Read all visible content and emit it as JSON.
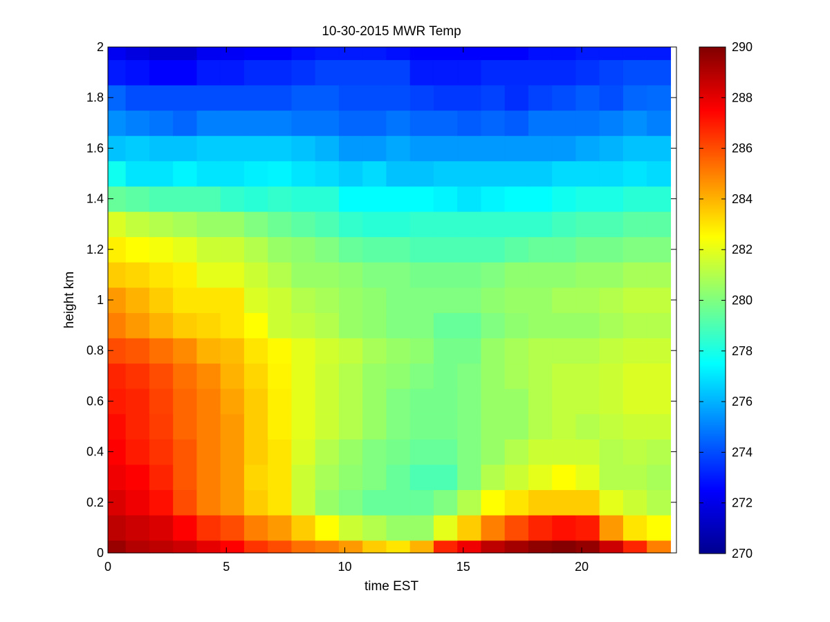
{
  "chart_data": {
    "type": "heatmap",
    "title": "10-30-2015 MWR Temp",
    "xlabel": "time EST",
    "ylabel": "height km",
    "xlim": [
      0,
      24
    ],
    "ylim": [
      0,
      2
    ],
    "x_ticks": [
      0,
      5,
      10,
      15,
      20
    ],
    "y_ticks": [
      0,
      0.2,
      0.4,
      0.6,
      0.8,
      1,
      1.2,
      1.4,
      1.6,
      1.8,
      2
    ],
    "x_tick_labels": [
      "0",
      "5",
      "10",
      "15",
      "20"
    ],
    "y_tick_labels": [
      "0",
      "0.2",
      "0.4",
      "0.6",
      "0.8",
      "1",
      "1.2",
      "1.4",
      "1.6",
      "1.8",
      "2"
    ],
    "time_centers": [
      0.25,
      1.25,
      2.25,
      3.25,
      4.25,
      5.25,
      6.25,
      7.25,
      8.25,
      9.25,
      10.25,
      11.25,
      12.25,
      13.25,
      14.25,
      15.25,
      16.25,
      17.25,
      18.25,
      19.25,
      20.25,
      21.25,
      22.25,
      23.25
    ],
    "height_edges_km": [
      0,
      0.05,
      0.15,
      0.25,
      0.35,
      0.45,
      0.55,
      0.65,
      0.75,
      0.85,
      0.95,
      1.05,
      1.15,
      1.25,
      1.35,
      1.45,
      1.55,
      1.65,
      1.75,
      1.85,
      1.95,
      2.0
    ],
    "colorbar": {
      "range": [
        270,
        290
      ],
      "ticks": [
        270,
        272,
        274,
        276,
        278,
        280,
        282,
        284,
        286,
        288,
        290
      ],
      "tick_labels": [
        "270",
        "272",
        "274",
        "276",
        "278",
        "280",
        "282",
        "284",
        "286",
        "288",
        "290"
      ],
      "colormap": "jet"
    },
    "values_K": [
      [
        289.5,
        289.0,
        288.8,
        288.5,
        288.0,
        287.5,
        286.5,
        286.0,
        285.3,
        285.0,
        284.5,
        283.5,
        283.0,
        284.0,
        286.8,
        287.8,
        288.8,
        289.3,
        289.7,
        289.9,
        289.6,
        288.5,
        286.8,
        285.0
      ],
      [
        288.8,
        288.5,
        288.2,
        287.5,
        286.5,
        286.0,
        285.0,
        284.5,
        283.5,
        282.5,
        281.5,
        281.0,
        280.5,
        280.5,
        282.0,
        283.5,
        285.0,
        286.0,
        286.8,
        287.2,
        287.0,
        284.5,
        283.0,
        282.5
      ],
      [
        288.2,
        287.8,
        287.2,
        286.0,
        285.0,
        284.5,
        283.5,
        283.0,
        281.5,
        280.5,
        280.0,
        279.5,
        279.5,
        279.5,
        280.0,
        281.0,
        282.5,
        283.0,
        283.5,
        283.5,
        283.5,
        282.0,
        281.5,
        281.0
      ],
      [
        287.8,
        287.5,
        286.8,
        285.8,
        285.0,
        284.5,
        283.3,
        283.0,
        281.5,
        280.8,
        280.3,
        280.0,
        279.5,
        279.0,
        279.0,
        280.0,
        281.0,
        281.5,
        282.0,
        282.5,
        282.0,
        281.0,
        281.0,
        280.8
      ],
      [
        287.5,
        287.0,
        286.5,
        285.8,
        285.0,
        284.5,
        283.5,
        283.0,
        281.8,
        281.0,
        280.5,
        280.0,
        279.8,
        279.5,
        279.5,
        280.0,
        280.5,
        281.0,
        281.5,
        281.5,
        281.5,
        281.0,
        281.2,
        281.0
      ],
      [
        287.3,
        286.8,
        286.3,
        285.5,
        285.0,
        284.5,
        283.5,
        282.8,
        282.0,
        281.5,
        281.0,
        280.5,
        280.0,
        279.8,
        279.8,
        280.0,
        280.5,
        280.5,
        281.0,
        281.3,
        281.0,
        281.3,
        281.5,
        281.5
      ],
      [
        287.0,
        286.8,
        286.2,
        285.5,
        285.0,
        284.3,
        283.5,
        282.8,
        282.0,
        281.5,
        281.0,
        280.5,
        280.0,
        279.8,
        279.8,
        280.0,
        280.5,
        280.5,
        281.0,
        281.3,
        281.3,
        281.5,
        281.8,
        281.8
      ],
      [
        286.8,
        286.5,
        286.0,
        285.3,
        284.8,
        284.0,
        283.3,
        282.7,
        282.0,
        281.5,
        281.0,
        280.5,
        280.3,
        280.0,
        279.8,
        280.0,
        280.5,
        280.8,
        281.0,
        281.3,
        281.3,
        281.5,
        281.8,
        281.8
      ],
      [
        286.0,
        285.8,
        285.3,
        284.8,
        284.0,
        283.8,
        283.0,
        282.6,
        282.0,
        281.6,
        281.3,
        280.8,
        280.5,
        280.3,
        279.8,
        279.8,
        280.5,
        280.8,
        281.0,
        281.0,
        281.0,
        281.3,
        281.5,
        281.5
      ],
      [
        285.0,
        284.5,
        284.0,
        283.5,
        283.3,
        283.0,
        282.5,
        281.5,
        281.3,
        281.0,
        280.5,
        280.3,
        280.0,
        280.0,
        279.5,
        279.5,
        280.0,
        280.3,
        280.5,
        280.5,
        280.5,
        280.8,
        281.0,
        281.0
      ],
      [
        284.5,
        284.0,
        283.5,
        283.0,
        283.0,
        283.0,
        281.8,
        281.5,
        281.0,
        280.8,
        280.5,
        280.3,
        280.0,
        280.0,
        280.0,
        280.0,
        280.3,
        280.5,
        280.5,
        280.8,
        280.8,
        281.0,
        281.3,
        281.3
      ],
      [
        283.5,
        283.3,
        283.0,
        282.8,
        282.0,
        282.0,
        281.5,
        281.0,
        280.5,
        280.5,
        280.3,
        280.0,
        280.0,
        279.8,
        279.8,
        279.8,
        280.0,
        280.3,
        280.3,
        280.3,
        280.5,
        280.5,
        280.8,
        280.8
      ],
      [
        282.8,
        282.5,
        282.3,
        282.0,
        281.5,
        281.5,
        281.0,
        280.5,
        280.3,
        280.0,
        279.5,
        279.3,
        279.3,
        279.0,
        279.0,
        279.0,
        279.0,
        279.3,
        279.5,
        279.5,
        279.8,
        279.8,
        280.0,
        280.0
      ],
      [
        281.8,
        281.3,
        281.0,
        280.8,
        280.5,
        280.5,
        280.0,
        279.6,
        279.3,
        279.0,
        278.5,
        278.3,
        278.3,
        278.5,
        278.5,
        278.5,
        278.5,
        278.5,
        278.5,
        278.8,
        279.0,
        279.0,
        279.3,
        279.3
      ],
      [
        279.5,
        279.3,
        279.0,
        279.0,
        279.0,
        278.5,
        278.3,
        278.5,
        278.3,
        278.3,
        277.5,
        277.5,
        277.5,
        277.5,
        277.3,
        277.0,
        277.3,
        277.5,
        277.5,
        277.8,
        278.0,
        278.0,
        278.3,
        278.3
      ],
      [
        277.8,
        277.0,
        277.0,
        277.3,
        277.0,
        277.0,
        277.2,
        277.3,
        277.0,
        276.8,
        276.5,
        276.8,
        276.3,
        276.3,
        276.5,
        276.5,
        276.5,
        276.5,
        276.5,
        276.8,
        276.8,
        276.8,
        277.0,
        276.8
      ],
      [
        276.3,
        276.5,
        276.3,
        276.3,
        276.5,
        276.5,
        276.5,
        276.5,
        276.3,
        276.0,
        275.5,
        275.5,
        275.8,
        275.5,
        275.5,
        275.5,
        275.5,
        275.5,
        275.5,
        275.5,
        275.8,
        276.0,
        276.3,
        276.3
      ],
      [
        275.3,
        275.0,
        274.8,
        274.5,
        275.0,
        275.0,
        275.0,
        275.0,
        274.8,
        274.8,
        274.5,
        274.5,
        274.8,
        274.5,
        274.5,
        274.3,
        274.5,
        274.3,
        274.8,
        274.8,
        274.8,
        275.0,
        275.3,
        275.0
      ],
      [
        274.5,
        274.0,
        274.0,
        274.0,
        274.0,
        274.0,
        274.0,
        274.0,
        274.3,
        274.3,
        274.0,
        274.0,
        274.0,
        273.8,
        273.6,
        273.6,
        273.8,
        273.4,
        273.8,
        274.0,
        274.3,
        274.0,
        274.5,
        274.6
      ],
      [
        273.0,
        272.8,
        272.5,
        272.5,
        273.0,
        273.0,
        273.3,
        273.3,
        273.5,
        273.8,
        273.8,
        273.8,
        273.8,
        273.0,
        273.0,
        273.0,
        273.3,
        273.3,
        273.3,
        273.3,
        273.5,
        273.8,
        274.0,
        274.0
      ],
      [
        272.2,
        271.8,
        271.5,
        271.5,
        272.2,
        272.3,
        272.5,
        272.5,
        272.8,
        273.0,
        273.0,
        273.0,
        272.8,
        272.5,
        272.5,
        272.5,
        272.5,
        272.5,
        272.8,
        272.8,
        273.0,
        273.0,
        273.0,
        273.0
      ]
    ]
  }
}
